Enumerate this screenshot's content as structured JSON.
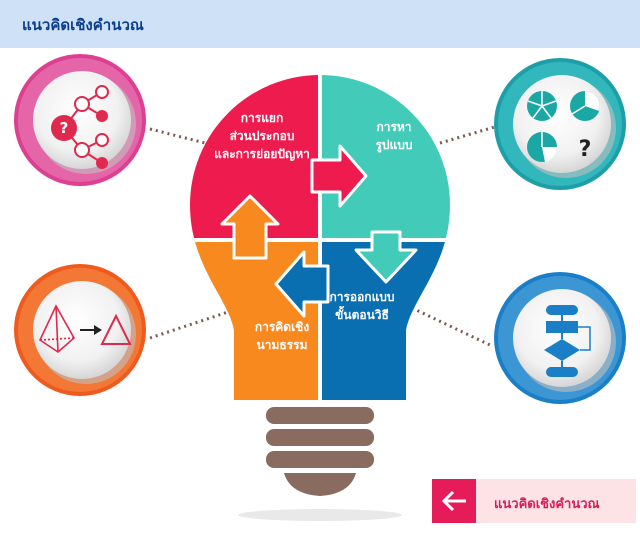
{
  "header": {
    "title": "แนวคิดเชิงคำนวณ"
  },
  "puzzle": {
    "decomposition": [
      "การแยก",
      "ส่วนประกอบ",
      "และการย่อยปัญหา"
    ],
    "pattern": [
      "การหา",
      "รูปแบบ"
    ],
    "abstraction": [
      "การคิดเชิง",
      "นามธรรม"
    ],
    "algorithm": [
      "การออกแบบ",
      "ขั้นตอนวิธี"
    ]
  },
  "icons": {
    "top_left": "decomposition-tree-icon",
    "top_right": "pattern-pie-charts-icon",
    "bottom_left": "pyramid-to-triangle-icon",
    "bottom_right": "flowchart-icon",
    "question_mark": "?"
  },
  "colors": {
    "red": "#ee1c4e",
    "teal": "#43cbb9",
    "orange": "#f7891f",
    "blue": "#0a6fb0",
    "base": "#8a6b60"
  },
  "back_button": {
    "label": "แนวคิดเชิงคำนวณ",
    "icon": "arrow-left-icon"
  }
}
